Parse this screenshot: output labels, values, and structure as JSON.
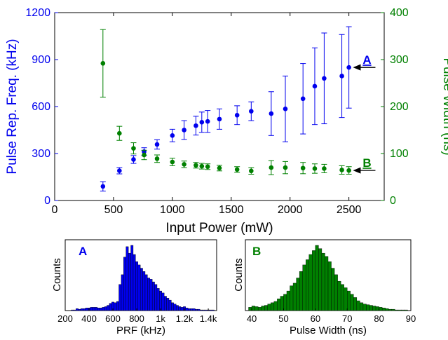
{
  "colors": {
    "primary": "#0000ee",
    "secondary": "#008000",
    "axis": "#000000"
  },
  "chart_data": [
    {
      "type": "scatter",
      "xlabel": "Input Power (mW)",
      "ylabel_left": "Pulse Rep. Freq. (kHz)",
      "ylabel_right": "Pulse Width (ns)",
      "xlim": [
        0,
        2800
      ],
      "ylim_left": [
        0,
        1200
      ],
      "ylim_right": [
        0,
        400
      ],
      "xticks": [
        0,
        500,
        1000,
        1500,
        2000,
        2500
      ],
      "xtick_labels": [
        "0",
        "500",
        "1000",
        "1500",
        "2000",
        "2500"
      ],
      "yticks_left": [
        0,
        300,
        600,
        900,
        1200
      ],
      "ytick_labels_left": [
        "0",
        "300",
        "600",
        "900",
        "1200"
      ],
      "yticks_right": [
        0,
        100,
        200,
        300,
        400
      ],
      "ytick_labels_right": [
        "0",
        "100",
        "200",
        "300",
        "400"
      ],
      "grid": false,
      "series": [
        {
          "axis": "left",
          "color": "#0000ee",
          "points": [
            {
              "x": 410,
              "y": 90,
              "err": 30
            },
            {
              "x": 550,
              "y": 190,
              "err": 20
            },
            {
              "x": 670,
              "y": 262,
              "err": 25
            },
            {
              "x": 760,
              "y": 312,
              "err": 25
            },
            {
              "x": 870,
              "y": 358,
              "err": 30
            },
            {
              "x": 1000,
              "y": 415,
              "err": 40
            },
            {
              "x": 1100,
              "y": 450,
              "err": 60
            },
            {
              "x": 1200,
              "y": 478,
              "err": 60
            },
            {
              "x": 1250,
              "y": 500,
              "err": 65
            },
            {
              "x": 1300,
              "y": 505,
              "err": 70
            },
            {
              "x": 1400,
              "y": 520,
              "err": 65
            },
            {
              "x": 1550,
              "y": 545,
              "err": 60
            },
            {
              "x": 1670,
              "y": 570,
              "err": 60
            },
            {
              "x": 1840,
              "y": 555,
              "err": 140
            },
            {
              "x": 1960,
              "y": 585,
              "err": 210
            },
            {
              "x": 2110,
              "y": 650,
              "err": 225
            },
            {
              "x": 2210,
              "y": 730,
              "err": 245
            },
            {
              "x": 2290,
              "y": 780,
              "err": 290
            },
            {
              "x": 2440,
              "y": 795,
              "err": 265
            },
            {
              "x": 2500,
              "y": 850,
              "err": 260
            }
          ]
        },
        {
          "axis": "right",
          "color": "#008000",
          "points": [
            {
              "x": 410,
              "y": 292,
              "err": 72
            },
            {
              "x": 550,
              "y": 143,
              "err": 15
            },
            {
              "x": 670,
              "y": 111,
              "err": 12
            },
            {
              "x": 760,
              "y": 97,
              "err": 10
            },
            {
              "x": 870,
              "y": 89,
              "err": 8
            },
            {
              "x": 1000,
              "y": 82,
              "err": 8
            },
            {
              "x": 1100,
              "y": 77,
              "err": 7
            },
            {
              "x": 1200,
              "y": 75,
              "err": 6
            },
            {
              "x": 1250,
              "y": 73,
              "err": 6
            },
            {
              "x": 1300,
              "y": 72,
              "err": 6
            },
            {
              "x": 1400,
              "y": 69,
              "err": 6
            },
            {
              "x": 1550,
              "y": 66,
              "err": 6
            },
            {
              "x": 1670,
              "y": 63,
              "err": 7
            },
            {
              "x": 1840,
              "y": 70,
              "err": 15
            },
            {
              "x": 1960,
              "y": 70,
              "err": 13
            },
            {
              "x": 2110,
              "y": 69,
              "err": 12
            },
            {
              "x": 2210,
              "y": 68,
              "err": 10
            },
            {
              "x": 2290,
              "y": 68,
              "err": 9
            },
            {
              "x": 2440,
              "y": 65,
              "err": 9
            },
            {
              "x": 2500,
              "y": 64,
              "err": 8
            }
          ]
        }
      ],
      "annotations": [
        {
          "label": "A",
          "color": "#0000ee",
          "x": 2630,
          "y_left": 850
        },
        {
          "label": "B",
          "color": "#008000",
          "x": 2630,
          "y_right": 64
        }
      ]
    },
    {
      "type": "bar",
      "panel_label": "A",
      "color": "#0000ee",
      "xlabel": "PRF (kHz)",
      "ylabel": "Counts",
      "xlim": [
        200,
        1470
      ],
      "xticks": [
        200,
        400,
        600,
        800,
        1000,
        1200,
        1400
      ],
      "xtick_labels": [
        "200",
        "400",
        "600",
        "800",
        "1k",
        "1.2k",
        "1.4k"
      ],
      "bin_start": 250,
      "bin_width": 20,
      "values": [
        1,
        1,
        3,
        2,
        3,
        3,
        4,
        4,
        5,
        5,
        5,
        4,
        4,
        5,
        6,
        8,
        11,
        13,
        12,
        14,
        40,
        55,
        82,
        98,
        88,
        100,
        86,
        75,
        70,
        65,
        60,
        55,
        50,
        48,
        44,
        40,
        34,
        30,
        27,
        22,
        19,
        16,
        12,
        10,
        8,
        6,
        5,
        6,
        4,
        3,
        3,
        3,
        2,
        2,
        1,
        1,
        1,
        1,
        1,
        1
      ]
    },
    {
      "type": "bar",
      "panel_label": "B",
      "color": "#008000",
      "xlabel": "Pulse Width (ns)",
      "ylabel": "Counts",
      "xlim": [
        38,
        90
      ],
      "xticks": [
        40,
        50,
        60,
        70,
        80,
        90
      ],
      "xtick_labels": [
        "40",
        "50",
        "60",
        "70",
        "80",
        "90"
      ],
      "bin_start": 39,
      "bin_width": 1,
      "values": [
        5,
        7,
        6,
        5,
        7,
        8,
        10,
        12,
        14,
        18,
        22,
        25,
        30,
        38,
        42,
        50,
        60,
        70,
        78,
        86,
        92,
        100,
        95,
        88,
        83,
        75,
        65,
        55,
        45,
        40,
        35,
        30,
        25,
        20,
        15,
        12,
        10,
        9,
        8,
        7,
        6,
        5,
        4,
        3,
        2,
        2,
        1,
        1,
        1,
        1
      ]
    }
  ]
}
